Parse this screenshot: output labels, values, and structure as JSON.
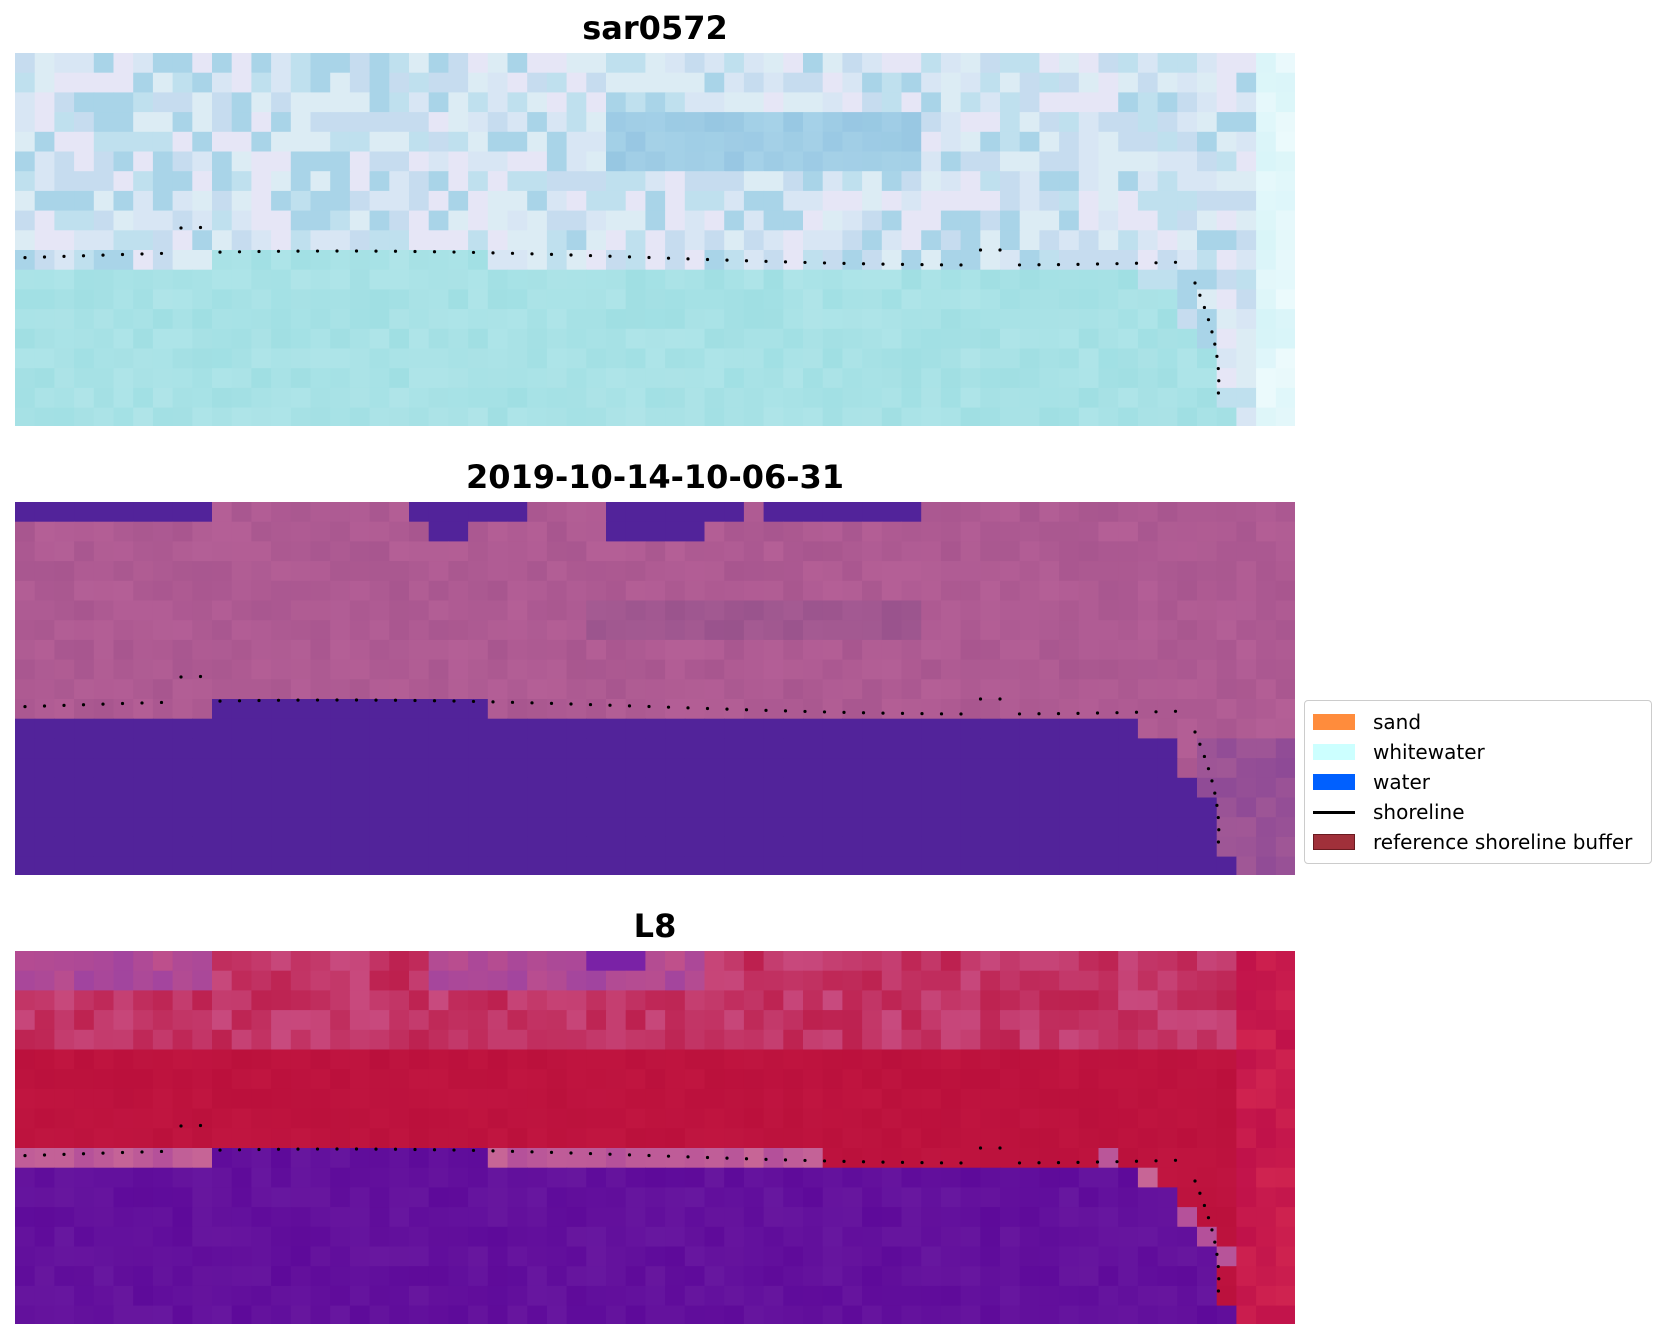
{
  "panels": [
    {
      "title": "sar0572",
      "style": "sar"
    },
    {
      "title": "2019-10-14-10-06-31",
      "style": "classified"
    },
    {
      "title": "L8",
      "style": "l8"
    }
  ],
  "legend": {
    "items": [
      {
        "label": "sand",
        "color": "#ff8c3c",
        "kind": "patch"
      },
      {
        "label": "whitewater",
        "color": "#ccffff",
        "kind": "patch"
      },
      {
        "label": "water",
        "color": "#0060ff",
        "kind": "patch"
      },
      {
        "label": "shoreline",
        "color": "#000000",
        "kind": "line"
      },
      {
        "label": "reference shoreline buffer",
        "color": "#a0303a",
        "kind": "patch"
      }
    ]
  },
  "colors": {
    "sar_sky": "#c6dcef",
    "sar_water": "#a0dfe3",
    "class_land": "#a8568f",
    "class_water": "#52239a",
    "l8_land": "#c01540",
    "l8_water": "#5e0a9a"
  }
}
